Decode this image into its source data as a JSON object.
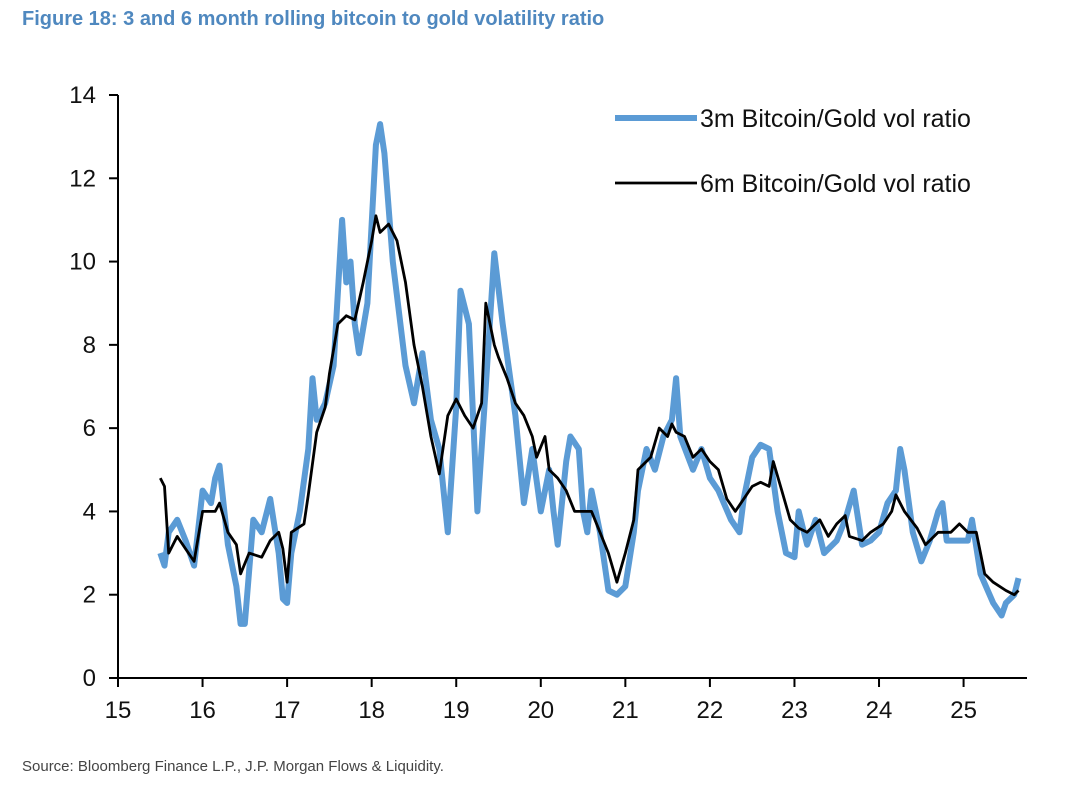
{
  "chart_data": {
    "type": "line",
    "title": "Figure 18: 3 and 6 month rolling bitcoin to gold volatility ratio",
    "source": "Source: Bloomberg Finance L.P., J.P. Morgan Flows & Liquidity.",
    "xlabel": "",
    "ylabel": "",
    "xlim": [
      15,
      25.75
    ],
    "ylim": [
      0,
      14
    ],
    "xticks": [
      "15",
      "16",
      "17",
      "18",
      "19",
      "20",
      "21",
      "22",
      "23",
      "24",
      "25"
    ],
    "yticks": [
      "0",
      "2",
      "4",
      "6",
      "8",
      "10",
      "12",
      "14"
    ],
    "grid": false,
    "legend_position": "top-right",
    "series": [
      {
        "name": "3m Bitcoin/Gold vol ratio",
        "color": "#5b9bd5",
        "x": [
          15.5,
          15.55,
          15.6,
          15.7,
          15.8,
          15.9,
          16.0,
          16.1,
          16.15,
          16.2,
          16.3,
          16.4,
          16.45,
          16.5,
          16.6,
          16.7,
          16.8,
          16.9,
          16.95,
          17.0,
          17.05,
          17.15,
          17.25,
          17.3,
          17.35,
          17.45,
          17.55,
          17.65,
          17.7,
          17.75,
          17.8,
          17.85,
          17.95,
          18.05,
          18.1,
          18.15,
          18.25,
          18.4,
          18.5,
          18.6,
          18.7,
          18.8,
          18.9,
          19.0,
          19.05,
          19.15,
          19.25,
          19.35,
          19.45,
          19.55,
          19.7,
          19.8,
          19.9,
          20.0,
          20.1,
          20.15,
          20.2,
          20.3,
          20.35,
          20.45,
          20.5,
          20.55,
          20.6,
          20.7,
          20.8,
          20.9,
          21.0,
          21.1,
          21.15,
          21.25,
          21.35,
          21.45,
          21.55,
          21.6,
          21.65,
          21.8,
          21.9,
          22.0,
          22.1,
          22.25,
          22.35,
          22.4,
          22.5,
          22.6,
          22.7,
          22.8,
          22.9,
          23.0,
          23.05,
          23.15,
          23.25,
          23.35,
          23.5,
          23.6,
          23.7,
          23.8,
          23.9,
          24.0,
          24.1,
          24.2,
          24.25,
          24.3,
          24.4,
          24.5,
          24.6,
          24.7,
          24.75,
          24.8,
          24.95,
          25.05,
          25.1,
          25.2,
          25.35,
          25.45,
          25.5,
          25.6,
          25.65
        ],
        "values": [
          3.0,
          2.7,
          3.5,
          3.8,
          3.3,
          2.7,
          4.5,
          4.2,
          4.8,
          5.1,
          3.2,
          2.2,
          1.3,
          1.3,
          3.8,
          3.5,
          4.3,
          3.0,
          1.9,
          1.8,
          3.0,
          4.0,
          5.5,
          7.2,
          6.2,
          6.6,
          7.5,
          11.0,
          9.5,
          10.0,
          8.5,
          7.8,
          9.0,
          12.8,
          13.3,
          12.6,
          10.0,
          7.5,
          6.6,
          7.8,
          6.2,
          5.5,
          3.5,
          6.5,
          9.3,
          8.5,
          4.0,
          7.0,
          10.2,
          8.5,
          6.3,
          4.2,
          5.5,
          4.0,
          5.0,
          4.0,
          3.2,
          5.2,
          5.8,
          5.5,
          4.0,
          3.5,
          4.5,
          3.5,
          2.1,
          2.0,
          2.2,
          3.5,
          4.5,
          5.5,
          5.0,
          5.8,
          6.2,
          7.2,
          5.8,
          5.0,
          5.5,
          4.8,
          4.5,
          3.8,
          3.5,
          4.3,
          5.3,
          5.6,
          5.5,
          4.0,
          3.0,
          2.9,
          4.0,
          3.2,
          3.8,
          3.0,
          3.3,
          3.8,
          4.5,
          3.2,
          3.3,
          3.5,
          4.2,
          4.5,
          5.5,
          5.0,
          3.5,
          2.8,
          3.3,
          4.0,
          4.2,
          3.3,
          3.3,
          3.3,
          3.8,
          2.5,
          1.8,
          1.5,
          1.8,
          2.0,
          2.4
        ]
      },
      {
        "name": "6m Bitcoin/Gold vol ratio",
        "color": "#000000",
        "x": [
          15.5,
          15.55,
          15.6,
          15.7,
          15.8,
          15.9,
          16.0,
          16.15,
          16.2,
          16.3,
          16.4,
          16.45,
          16.55,
          16.7,
          16.8,
          16.9,
          16.95,
          17.0,
          17.05,
          17.2,
          17.25,
          17.35,
          17.45,
          17.5,
          17.6,
          17.7,
          17.8,
          17.9,
          18.0,
          18.05,
          18.1,
          18.2,
          18.3,
          18.4,
          18.5,
          18.6,
          18.7,
          18.8,
          18.9,
          19.0,
          19.1,
          19.2,
          19.3,
          19.35,
          19.45,
          19.5,
          19.6,
          19.7,
          19.8,
          19.9,
          19.95,
          20.05,
          20.1,
          20.2,
          20.3,
          20.4,
          20.5,
          20.6,
          20.7,
          20.8,
          20.9,
          21.0,
          21.1,
          21.15,
          21.3,
          21.4,
          21.5,
          21.55,
          21.6,
          21.7,
          21.8,
          21.9,
          22.0,
          22.1,
          22.2,
          22.3,
          22.5,
          22.6,
          22.7,
          22.75,
          22.85,
          22.95,
          23.05,
          23.15,
          23.3,
          23.4,
          23.5,
          23.6,
          23.65,
          23.8,
          23.9,
          24.05,
          24.15,
          24.2,
          24.3,
          24.45,
          24.55,
          24.7,
          24.85,
          24.95,
          25.05,
          25.15,
          25.25,
          25.35,
          25.5,
          25.6,
          25.65
        ],
        "values": [
          4.8,
          4.6,
          3.0,
          3.4,
          3.1,
          2.8,
          4.0,
          4.0,
          4.2,
          3.5,
          3.2,
          2.5,
          3.0,
          2.9,
          3.3,
          3.5,
          3.1,
          2.3,
          3.5,
          3.7,
          4.4,
          5.9,
          6.5,
          7.3,
          8.5,
          8.7,
          8.6,
          9.5,
          10.5,
          11.1,
          10.7,
          10.9,
          10.5,
          9.5,
          8.0,
          7.0,
          5.8,
          4.9,
          6.3,
          6.7,
          6.3,
          6.0,
          6.6,
          9.0,
          8.0,
          7.7,
          7.2,
          6.6,
          6.3,
          5.8,
          5.3,
          5.8,
          5.0,
          4.8,
          4.5,
          4.0,
          4.0,
          4.0,
          3.5,
          3.0,
          2.3,
          3.0,
          3.8,
          5.0,
          5.3,
          6.0,
          5.8,
          6.1,
          5.9,
          5.8,
          5.3,
          5.5,
          5.2,
          5.0,
          4.3,
          4.0,
          4.6,
          4.7,
          4.6,
          5.2,
          4.5,
          3.8,
          3.6,
          3.5,
          3.8,
          3.4,
          3.7,
          3.9,
          3.4,
          3.3,
          3.5,
          3.7,
          4.0,
          4.4,
          4.0,
          3.6,
          3.2,
          3.5,
          3.5,
          3.7,
          3.5,
          3.5,
          2.5,
          2.3,
          2.1,
          2.0,
          2.1
        ]
      }
    ]
  }
}
